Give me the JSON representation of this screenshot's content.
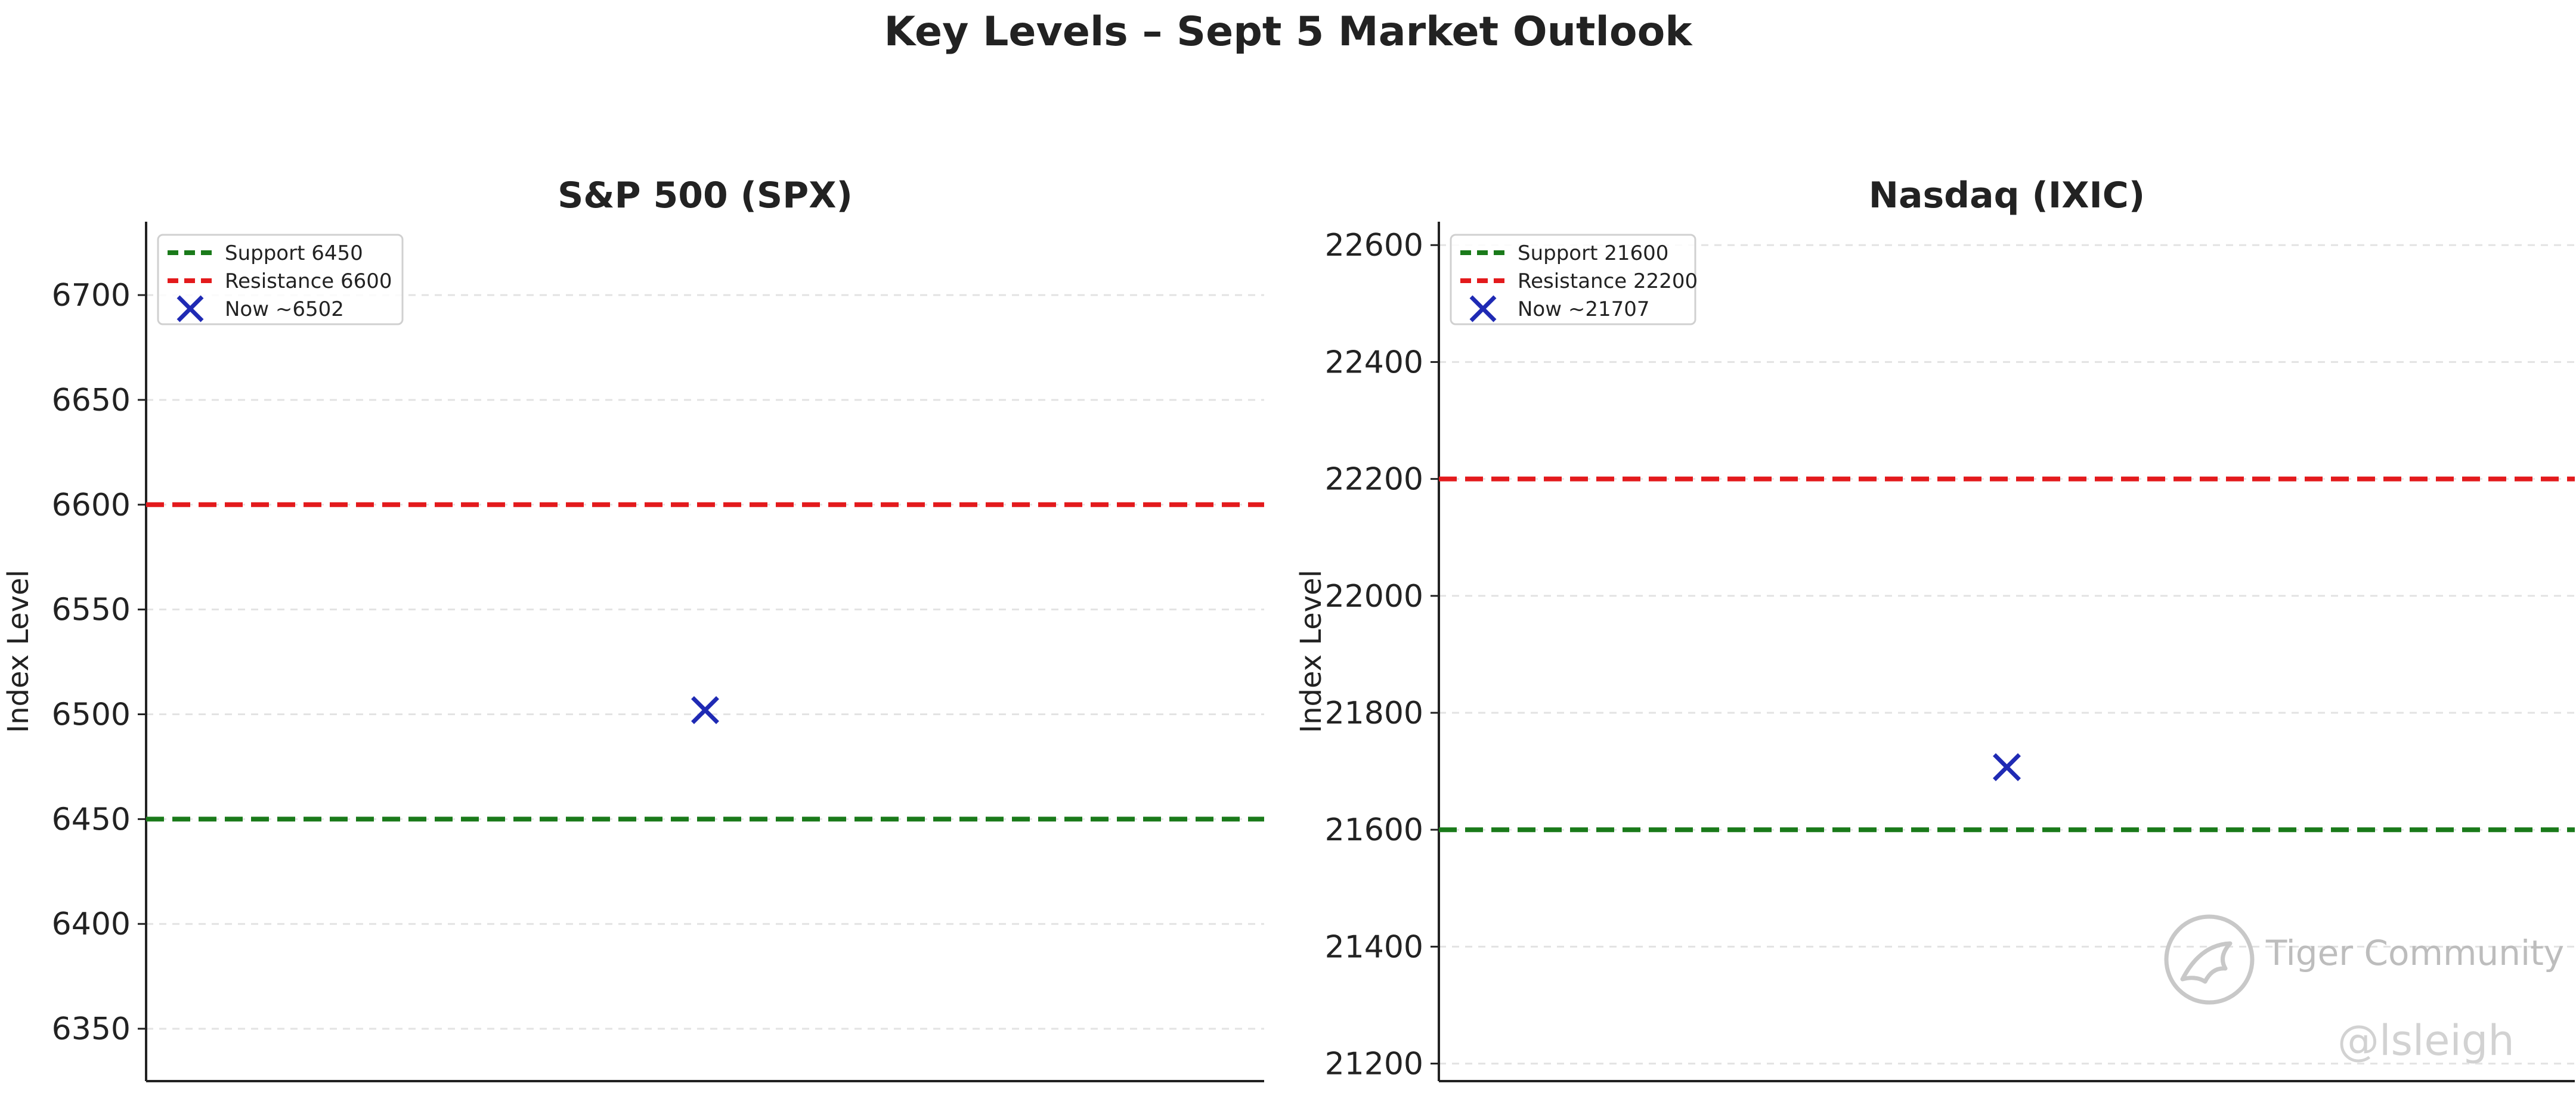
{
  "figure": {
    "title": "Key Levels – Sept 5 Market Outlook",
    "watermark": {
      "text": "Tiger Community",
      "handle": "@lsleigh",
      "icon": "tiger-community-logo-icon"
    }
  },
  "chart_data": [
    {
      "type": "line",
      "title": "S&P 500 (SPX)",
      "ylabel": "Index Level",
      "xlabel": "",
      "ylim": [
        6325,
        6735
      ],
      "yticks": [
        6350,
        6400,
        6450,
        6500,
        6550,
        6600,
        6650,
        6700
      ],
      "grid": "y",
      "legend_position": "upper-left",
      "series": [
        {
          "name": "Support 6450",
          "kind": "hline",
          "y": 6450,
          "color": "#1a7a1a",
          "style": "dashed"
        },
        {
          "name": "Resistance 6600",
          "kind": "hline",
          "y": 6600,
          "color": "#e31a1c",
          "style": "dashed"
        },
        {
          "name": "Now ~6502",
          "kind": "point",
          "marker": "x",
          "x": 0.5,
          "y": 6502,
          "color": "#1f2ab4"
        }
      ]
    },
    {
      "type": "line",
      "title": "Nasdaq (IXIC)",
      "ylabel": "Index Level",
      "xlabel": "",
      "ylim": [
        21170,
        22640
      ],
      "yticks": [
        21200,
        21400,
        21600,
        21800,
        22000,
        22200,
        22400,
        22600
      ],
      "grid": "y",
      "legend_position": "upper-left",
      "series": [
        {
          "name": "Support 21600",
          "kind": "hline",
          "y": 21600,
          "color": "#1a7a1a",
          "style": "dashed"
        },
        {
          "name": "Resistance 22200",
          "kind": "hline",
          "y": 22200,
          "color": "#e31a1c",
          "style": "dashed"
        },
        {
          "name": "Now ~21707",
          "kind": "point",
          "marker": "x",
          "x": 0.5,
          "y": 21707,
          "color": "#1f2ab4"
        }
      ]
    }
  ]
}
